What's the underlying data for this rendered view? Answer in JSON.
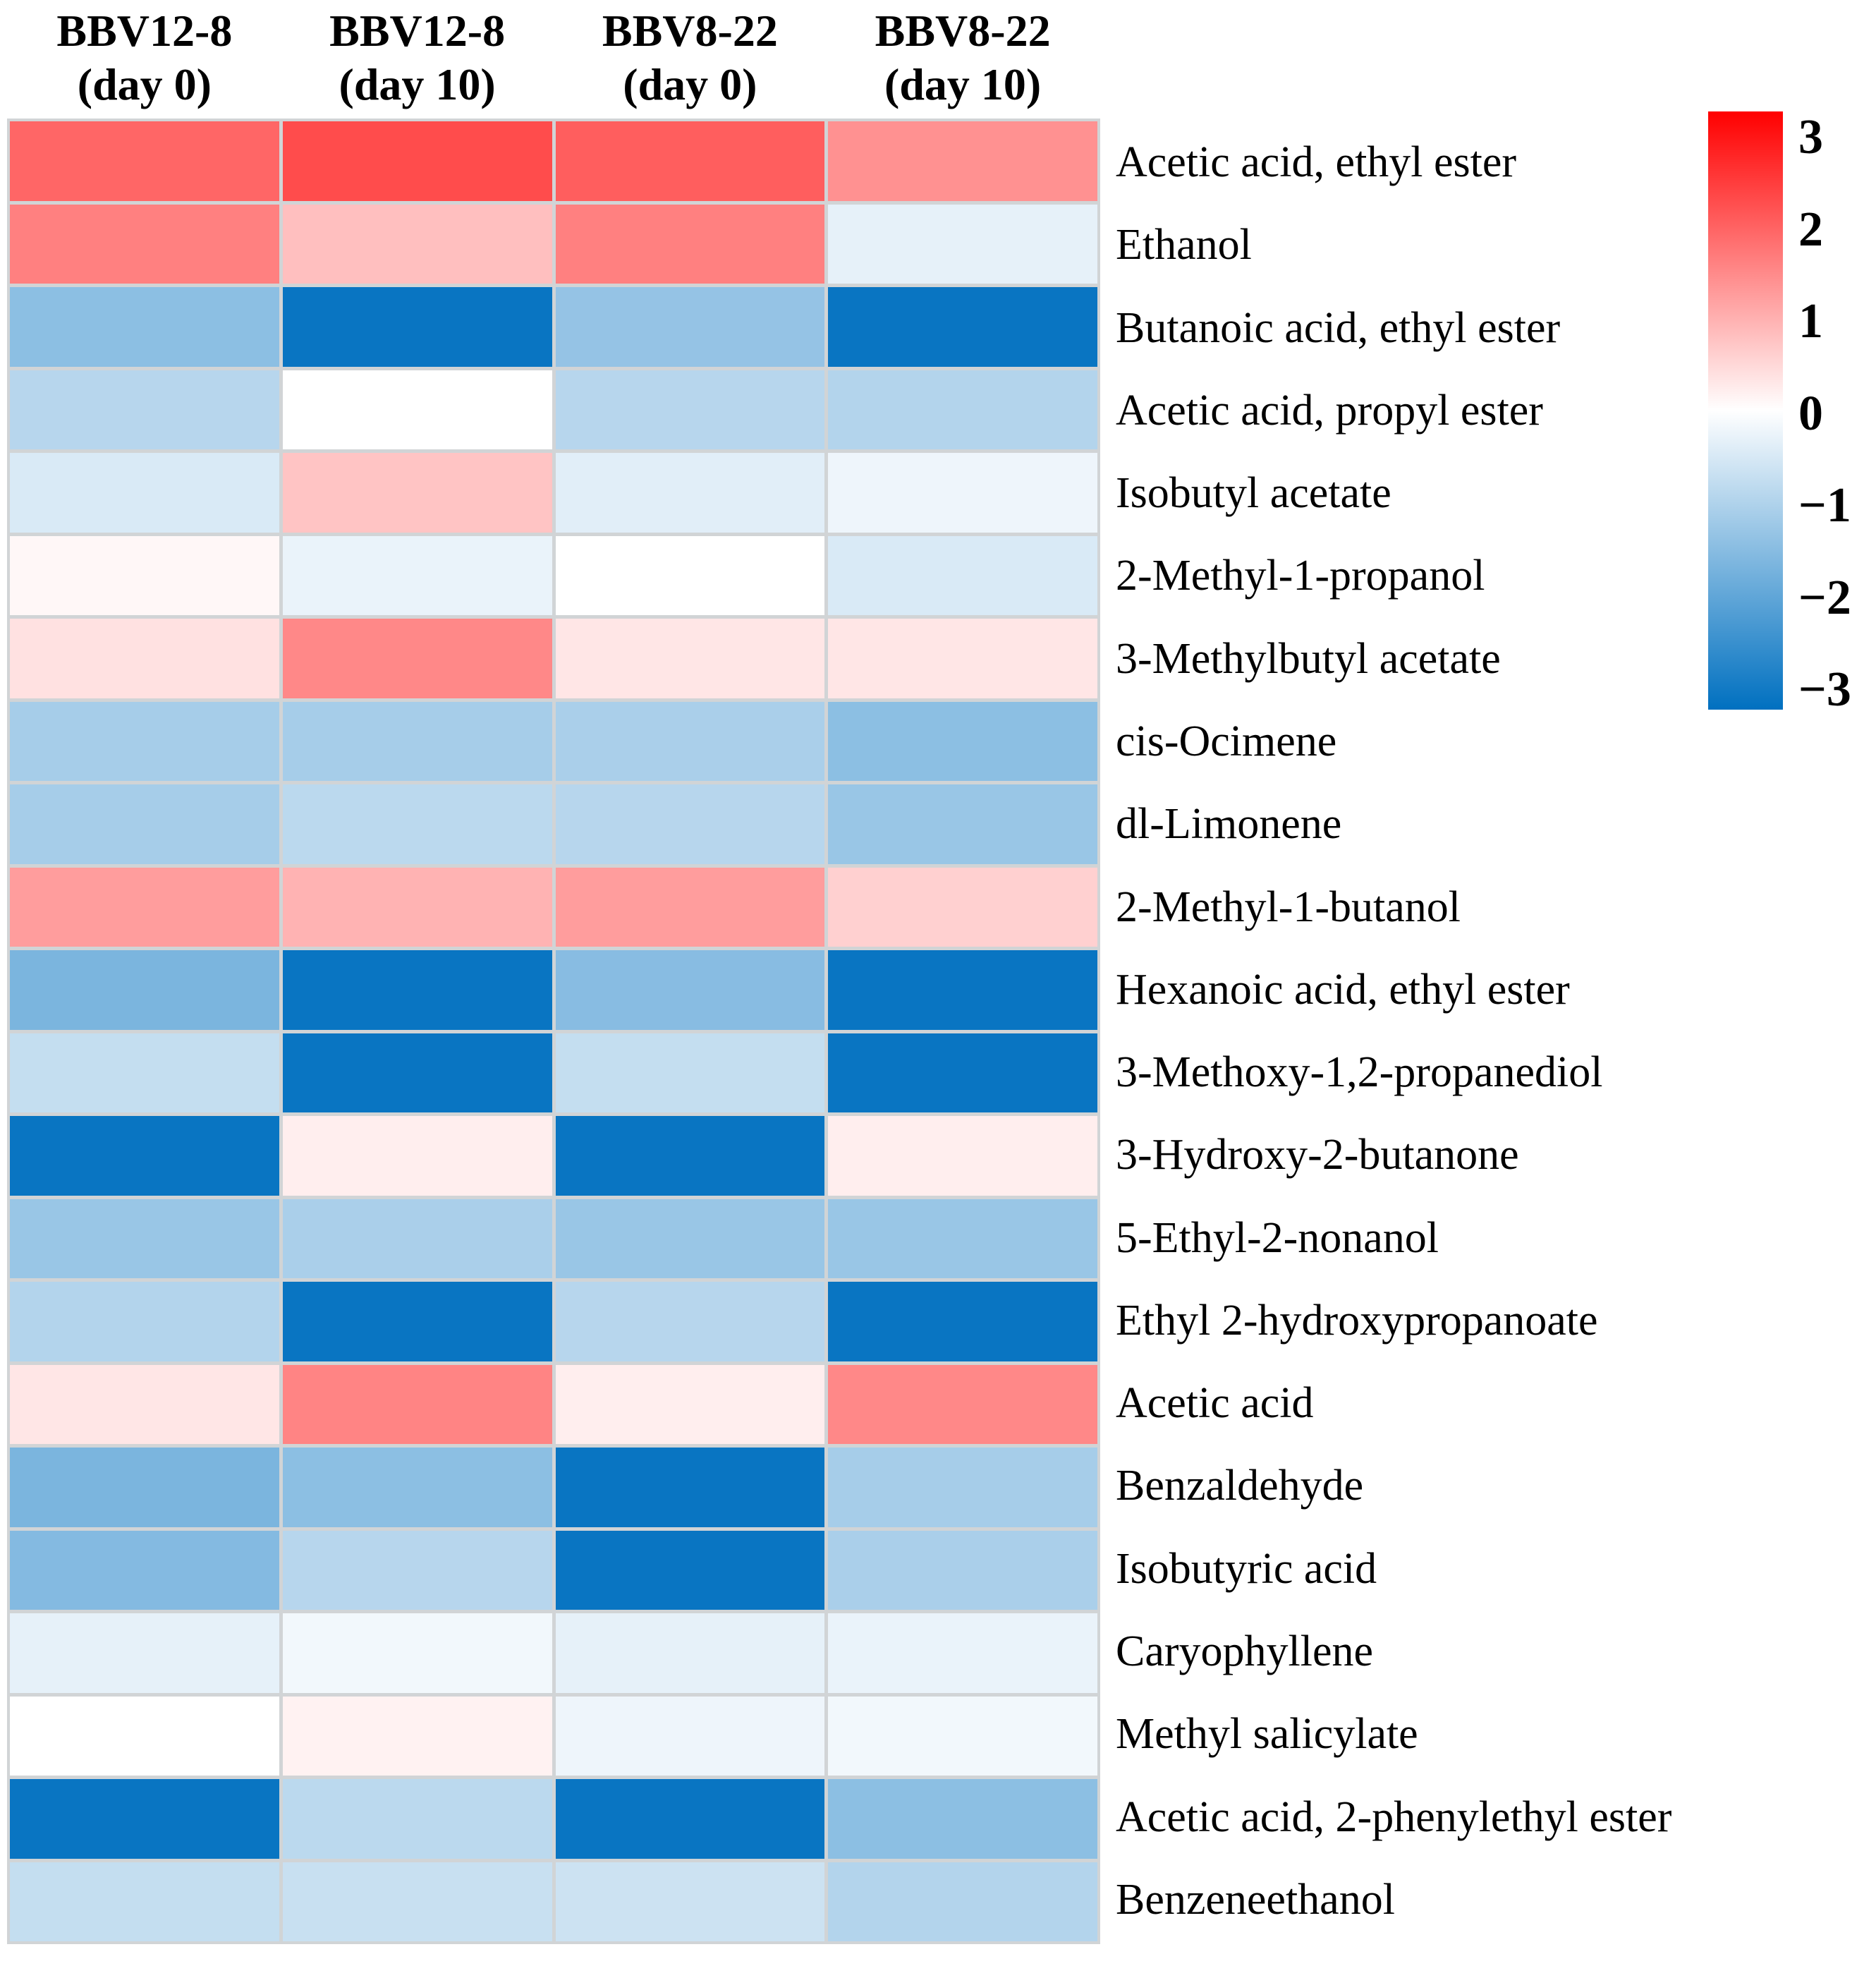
{
  "figure": {
    "description": "Heatmap of volatile compound abundance (z-score scaled) for two samples at day 0 and day 10",
    "background_color": "#ffffff",
    "gridline_color": "#d1d4d6"
  },
  "chart_data": {
    "type": "heatmap",
    "legend_position": "right",
    "grid": true,
    "columns": [
      {
        "line1": "BBV12-8",
        "line2": "(day 0)"
      },
      {
        "line1": "BBV12-8",
        "line2": "(day 10)"
      },
      {
        "line1": "BBV8-22",
        "line2": "(day 0)"
      },
      {
        "line1": "BBV8-22",
        "line2": "(day 10)"
      }
    ],
    "rows": [
      "Acetic acid, ethyl ester",
      "Ethanol",
      "Butanoic acid, ethyl ester",
      "Acetic acid, propyl ester",
      "Isobutyl acetate",
      "2-Methyl-1-propanol",
      "3-Methylbutyl acetate",
      "cis-Ocimene",
      "dl-Limonene",
      "2-Methyl-1-butanol",
      "Hexanoic acid, ethyl ester",
      "3-Methoxy-1,2-propanediol",
      "3-Hydroxy-2-butanone",
      "5-Ethyl-2-nonanol",
      "Ethyl 2-hydroxypropanoate",
      "Acetic acid",
      "Benzaldehyde",
      "Isobutyric acid",
      "Caryophyllene",
      "Methyl salicylate",
      "Acetic acid, 2-phenylethyl ester",
      "Benzeneethanol"
    ],
    "values": [
      [
        1.8,
        2.1,
        1.9,
        1.3
      ],
      [
        1.5,
        0.75,
        1.5,
        -0.3
      ],
      [
        -1.35,
        -2.9,
        -1.25,
        -2.9
      ],
      [
        -0.85,
        0.0,
        -0.85,
        -0.9
      ],
      [
        -0.45,
        0.7,
        -0.35,
        -0.2
      ],
      [
        0.1,
        -0.25,
        0.0,
        -0.45
      ],
      [
        0.35,
        1.4,
        0.3,
        0.3
      ],
      [
        -1.05,
        -1.05,
        -1.0,
        -1.35
      ],
      [
        -1.05,
        -0.8,
        -0.85,
        -1.2
      ],
      [
        1.15,
        0.9,
        1.15,
        0.55
      ],
      [
        -1.55,
        -2.9,
        -1.4,
        -2.9
      ],
      [
        -0.7,
        -2.9,
        -0.7,
        -2.9
      ],
      [
        -2.9,
        0.2,
        -2.9,
        0.2
      ],
      [
        -1.2,
        -1.0,
        -1.2,
        -1.2
      ],
      [
        -0.9,
        -2.9,
        -0.85,
        -2.9
      ],
      [
        0.3,
        1.45,
        0.2,
        1.4
      ],
      [
        -1.55,
        -1.35,
        -2.9,
        -1.05
      ],
      [
        -1.45,
        -0.85,
        -2.9,
        -1.0
      ],
      [
        -0.3,
        -0.15,
        -0.3,
        -0.25
      ],
      [
        0.0,
        0.15,
        -0.2,
        -0.15
      ],
      [
        -2.9,
        -0.8,
        -2.9,
        -1.35
      ],
      [
        -0.7,
        -0.65,
        -0.6,
        -0.9
      ]
    ],
    "colorbar": {
      "ticks": [
        "3",
        "2",
        "1",
        "0",
        "−1",
        "−2",
        "−3"
      ],
      "max": 3,
      "min": -3,
      "color_max": "#ff0000",
      "color_mid": "#ffffff",
      "color_min": "#0070c0"
    }
  }
}
